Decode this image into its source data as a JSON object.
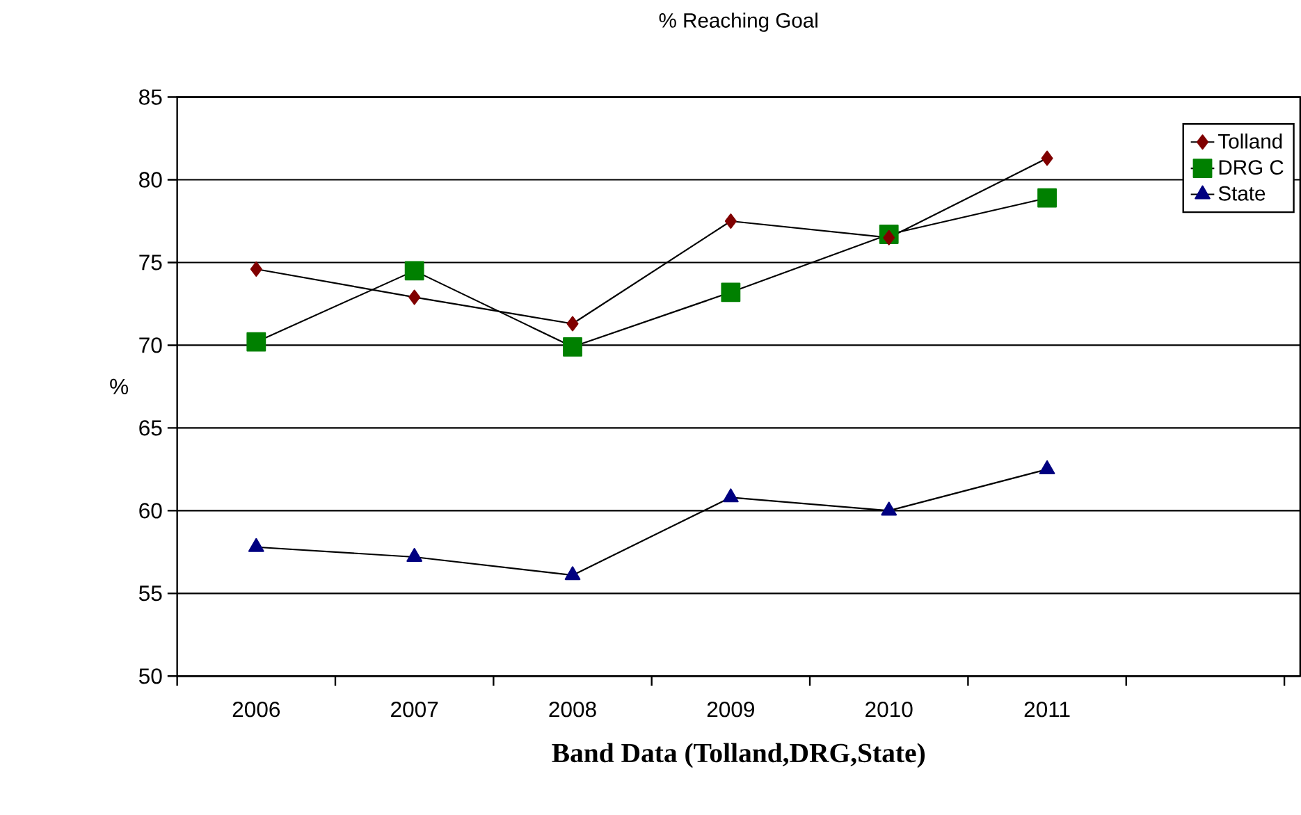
{
  "chart_data": {
    "type": "line",
    "title": "% Reaching Goal",
    "xlabel": "Band Data (Tolland,DRG,State)",
    "ylabel": "%",
    "categories": [
      "2006",
      "2007",
      "2008",
      "2009",
      "2010",
      "2011",
      null
    ],
    "series": [
      {
        "name": "Tolland",
        "color": "#800000",
        "marker": "diamond",
        "values": [
          74.6,
          72.9,
          71.3,
          77.5,
          76.5,
          81.3,
          null
        ]
      },
      {
        "name": "DRG C",
        "color": "#008000",
        "marker": "square",
        "values": [
          70.2,
          74.5,
          69.9,
          73.2,
          76.7,
          78.9,
          null
        ]
      },
      {
        "name": "State",
        "color": "#000080",
        "marker": "triangle",
        "values": [
          57.8,
          57.2,
          56.1,
          60.8,
          60.0,
          62.5,
          null
        ]
      }
    ],
    "ylim": [
      50,
      85
    ],
    "yticks": [
      50,
      55,
      60,
      65,
      70,
      75,
      80,
      85
    ],
    "grid": "y",
    "legend": "top right"
  }
}
